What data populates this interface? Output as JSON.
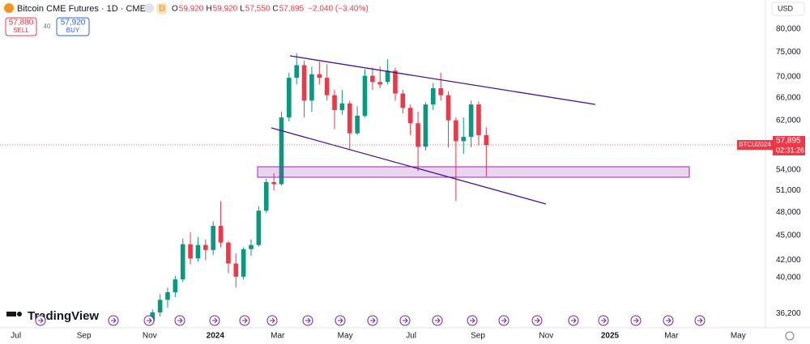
{
  "header": {
    "symbol": "Bitcoin CME Futures · 1D · CME",
    "badge": "D",
    "open_label": "O",
    "open": "59,920",
    "high_label": "H",
    "high": "59,920",
    "low_label": "L",
    "low": "57,550",
    "close_label": "C",
    "close": "57,895",
    "change": "−2,040 (−3.40%)"
  },
  "trade": {
    "sell_price": "57,880",
    "sell": "SELL",
    "spread": "40",
    "buy_price": "57,920",
    "buy": "BUY"
  },
  "currency": "USD",
  "brand": "TradingView",
  "price_tag": {
    "symbol": "BTCU2024",
    "last": {
      "value": 57895,
      "label": "57,895"
    },
    "countdown": "02:31:26"
  },
  "chart_data": {
    "type": "candlestick",
    "yscale": "log",
    "grid": false,
    "up_color": "#089981",
    "down_color": "#f23645",
    "categories": [
      null,
      null,
      null,
      null,
      null,
      null,
      null,
      null,
      null,
      null,
      null,
      null,
      null,
      null,
      null,
      null,
      null,
      null,
      null,
      null,
      null,
      null,
      null,
      null,
      null,
      null,
      null,
      null,
      null,
      null,
      null,
      null,
      null,
      null,
      null,
      null,
      null,
      null,
      null,
      null,
      null,
      null,
      null,
      null,
      null
    ],
    "open": [
      35400,
      36300,
      37600,
      38400,
      39800,
      43900,
      42200,
      43800,
      43200,
      46200,
      44100,
      41600,
      40100,
      43300,
      43800,
      48200,
      52200,
      51900,
      62500,
      69800,
      72300,
      65500,
      70500,
      69800,
      66500,
      63800,
      65000,
      59800,
      62800,
      70200,
      69000,
      69000,
      71200,
      66800,
      64200,
      61500,
      57600,
      64800,
      67800,
      66500,
      62000,
      58500,
      59200,
      64800,
      59500
    ],
    "high": [
      36600,
      38200,
      38900,
      40200,
      44600,
      45400,
      44800,
      44500,
      46800,
      49500,
      44300,
      42800,
      43500,
      44500,
      48800,
      52700,
      53500,
      63500,
      70800,
      74700,
      73200,
      72000,
      73000,
      72500,
      67500,
      67500,
      65500,
      64500,
      71500,
      71800,
      72000,
      73500,
      71800,
      67500,
      64800,
      63500,
      65200,
      68800,
      70800,
      67200,
      62500,
      62500,
      65500,
      65300,
      60800
    ],
    "low": [
      35300,
      35900,
      36800,
      37900,
      39500,
      41500,
      41800,
      42000,
      42600,
      43500,
      40500,
      38900,
      39800,
      42500,
      43600,
      47900,
      51000,
      51700,
      61800,
      68500,
      62500,
      63500,
      68500,
      65500,
      60500,
      63000,
      57200,
      59500,
      62500,
      67500,
      67800,
      68500,
      65500,
      63200,
      59500,
      53800,
      57000,
      63800,
      65500,
      57500,
      49500,
      56500,
      57500,
      57800,
      53000
    ],
    "close": [
      36300,
      37600,
      38400,
      39800,
      43900,
      42200,
      43800,
      43200,
      46200,
      44100,
      41600,
      40100,
      43300,
      43800,
      48200,
      52200,
      51900,
      62500,
      69800,
      72300,
      65500,
      70500,
      69800,
      66500,
      63800,
      65000,
      59800,
      62800,
      70200,
      69000,
      68500,
      71200,
      66800,
      64200,
      61500,
      57600,
      64800,
      67800,
      66500,
      62000,
      58500,
      59200,
      64800,
      59500,
      57895
    ],
    "xlim": [
      -20.1,
      80.8
    ],
    "xticks": [
      {
        "value": -18,
        "label": "Jul"
      },
      {
        "value": -9.03,
        "label": "Sep"
      },
      {
        "value": -0.37,
        "label": "Nov"
      },
      {
        "value": 8.28,
        "label": "2024"
      },
      {
        "value": 16.5,
        "label": "Mar"
      },
      {
        "value": 25.4,
        "label": "May"
      },
      {
        "value": 34.1,
        "label": "Jul"
      },
      {
        "value": 42.9,
        "label": "Sep"
      },
      {
        "value": 51.9,
        "label": "Nov"
      },
      {
        "value": 60.3,
        "label": "2025"
      },
      {
        "value": 68.4,
        "label": "Mar"
      },
      {
        "value": 77.2,
        "label": "May"
      }
    ],
    "ylim": [
      35170,
      86700
    ],
    "yticks": [
      {
        "value": 80000,
        "label": "80,000"
      },
      {
        "value": 75000,
        "label": "75,000"
      },
      {
        "value": 70000,
        "label": "70,000"
      },
      {
        "value": 66000,
        "label": "66,000"
      },
      {
        "value": 62000,
        "label": "62,000"
      },
      {
        "value": 54000,
        "label": "54,000"
      },
      {
        "value": 51000,
        "label": "51,000"
      },
      {
        "value": 48000,
        "label": "48,000"
      },
      {
        "value": 45000,
        "label": "45,000"
      },
      {
        "value": 42000,
        "label": "42,000"
      },
      {
        "value": 40000,
        "label": "40,000"
      },
      {
        "value": 36200,
        "label": "36,200"
      }
    ]
  }
}
